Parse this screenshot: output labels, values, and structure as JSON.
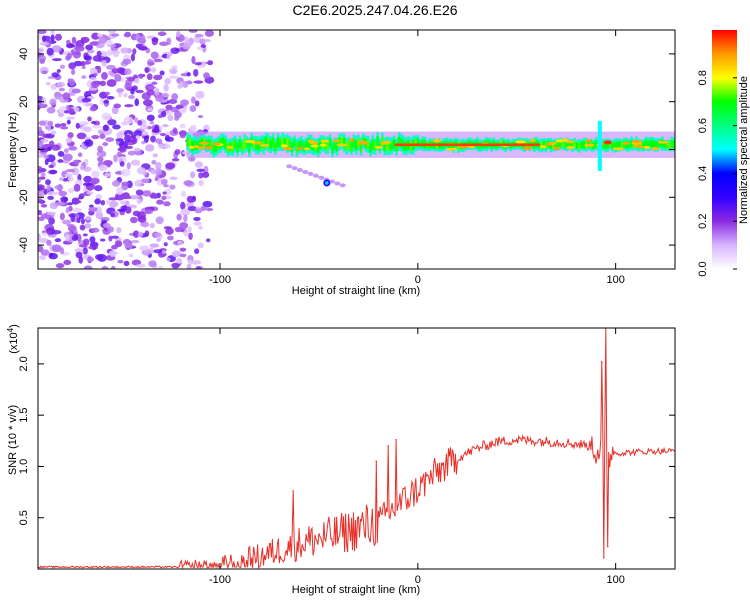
{
  "title": "C2E6.2025.247.04.26.E26",
  "chart_data": [
    {
      "type": "heatmap",
      "name": "spectrogram",
      "xlabel": "Height of straight line (km)",
      "ylabel": "Frequency (Hz)",
      "xlim": [
        -192,
        130
      ],
      "ylim": [
        -50,
        50
      ],
      "xticks": [
        -100,
        0,
        100
      ],
      "yticks": [
        -40,
        -20,
        0,
        20,
        40
      ],
      "xtick_labels": [
        "-100",
        "0",
        "100"
      ],
      "ytick_labels": [
        "-40",
        "-20",
        "0",
        "20",
        "40"
      ],
      "noise_region_x": [
        -192,
        -105
      ],
      "signal_band": {
        "x_start": -117,
        "x_end": 130,
        "center_hz": 2,
        "half_width_hz": 3.5,
        "peak_x_range": [
          -10,
          60
        ],
        "spike_x": 92
      },
      "side_feature": {
        "x_from": -65,
        "x_to": -38,
        "hz_from": -7,
        "hz_to": -15
      },
      "colorbar": {
        "label": "Normalized spectral amplitude",
        "ticks": [
          0.0,
          0.2,
          0.4,
          0.6,
          0.8
        ],
        "tick_labels": [
          "0.0",
          "0.2",
          "0.4",
          "0.6",
          "0.8"
        ],
        "range": [
          0,
          1
        ],
        "colors": [
          "#ffffff",
          "#d8b4ff",
          "#8a2be2",
          "#3300ff",
          "#0000ff",
          "#00ffff",
          "#00ff80",
          "#00ff00",
          "#ffff00",
          "#ff9900",
          "#ff0000"
        ]
      }
    },
    {
      "type": "line",
      "name": "snr",
      "xlabel": "Height of straight line (km)",
      "ylabel": "SNR (10 * v/v)",
      "scale_label": "(x10",
      "scale_exponent": "4",
      "xlim": [
        -192,
        130
      ],
      "ylim": [
        0,
        2.35
      ],
      "xticks": [
        -100,
        0,
        100
      ],
      "yticks": [
        0.5,
        1.0,
        1.5,
        2.0
      ],
      "xtick_labels": [
        "-100",
        "0",
        "100"
      ],
      "ytick_labels": [
        "0.5",
        "1.0",
        "1.5",
        "2.0"
      ],
      "color": "#e8302a",
      "trend_x": [
        -192,
        -120,
        -100,
        -80,
        -60,
        -40,
        -20,
        -10,
        0,
        10,
        20,
        30,
        40,
        50,
        60,
        70,
        80,
        88,
        93,
        100,
        110,
        120,
        130
      ],
      "trend_y": [
        0.02,
        0.02,
        0.03,
        0.12,
        0.25,
        0.34,
        0.45,
        0.62,
        0.78,
        0.95,
        1.08,
        1.18,
        1.24,
        1.26,
        1.25,
        1.24,
        1.22,
        1.2,
        1.18,
        1.13,
        1.14,
        1.15,
        1.15
      ],
      "spikes": [
        {
          "x": -63,
          "y": 0.76
        },
        {
          "x": -21,
          "y": 1.05
        },
        {
          "x": -15,
          "y": 1.2
        },
        {
          "x": -11,
          "y": 1.26
        },
        {
          "x": 93,
          "y": 2.02
        },
        {
          "x": 95,
          "y": 2.35
        },
        {
          "x": 94,
          "y": 0.11
        },
        {
          "x": 96,
          "y": 0.22
        }
      ]
    }
  ]
}
